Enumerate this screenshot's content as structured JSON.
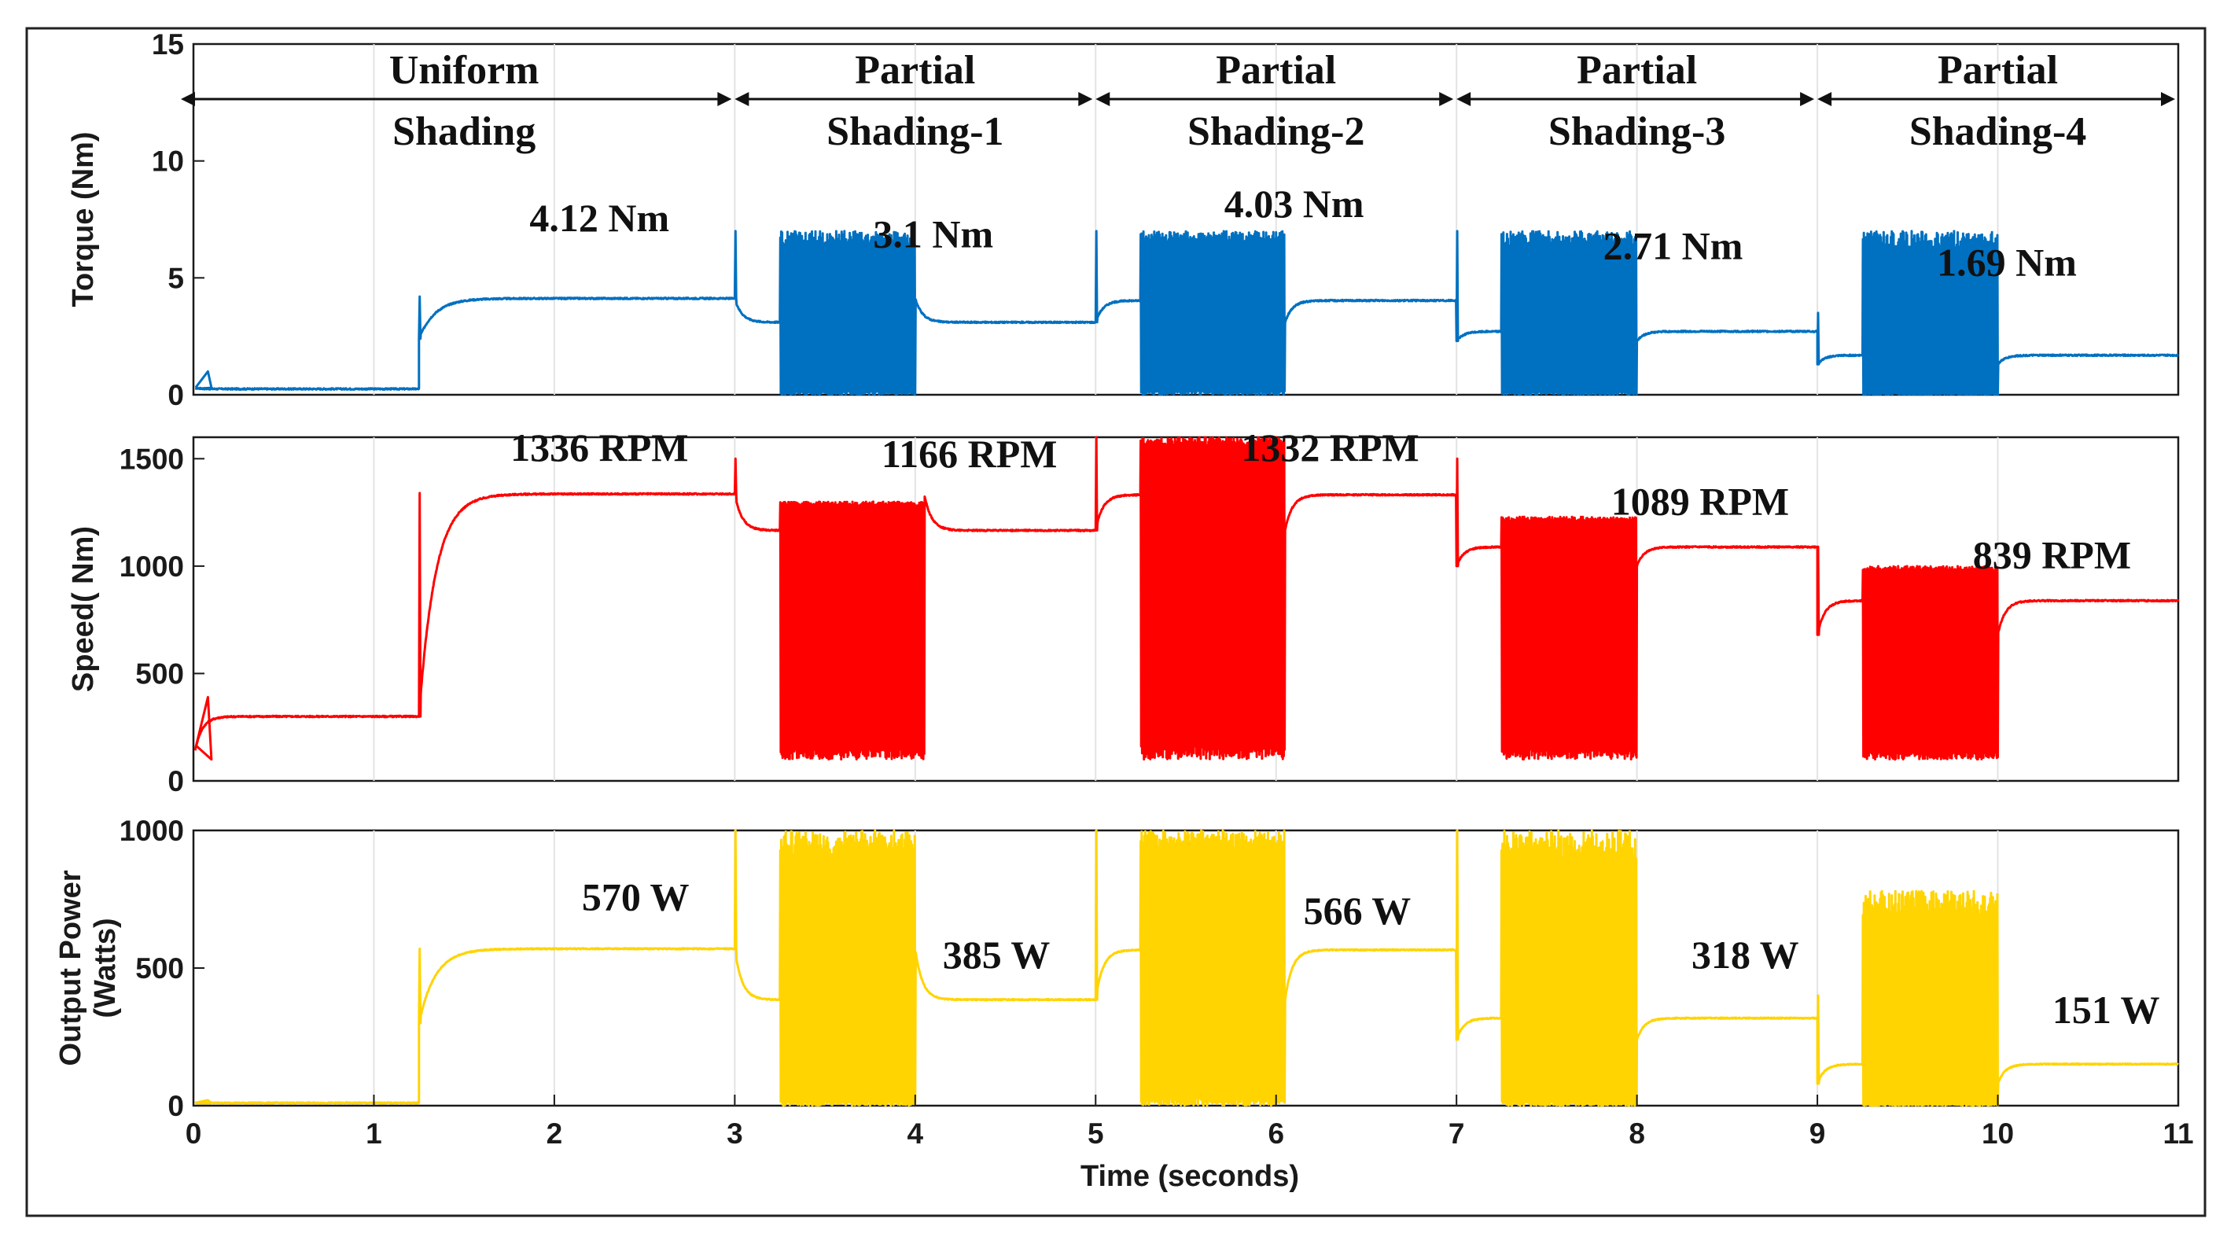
{
  "chart_data": [
    {
      "type": "line",
      "panel": "torque",
      "ylabel": "Torque (Nm)",
      "ylim": [
        0,
        15
      ],
      "yticks": [
        0,
        5,
        10,
        15
      ],
      "xlim": [
        0,
        11
      ],
      "show_x_ticklabels": false,
      "color": "#0070C0",
      "grid": true,
      "regions": [
        {
          "name": "Uniform Shading",
          "lines": [
            "Uniform",
            "Shading"
          ],
          "x0": 0,
          "x1": 3
        },
        {
          "name": "Partial Shading-1",
          "lines": [
            "Partial",
            "Shading-1"
          ],
          "x0": 3,
          "x1": 5
        },
        {
          "name": "Partial Shading-2",
          "lines": [
            "Partial",
            "Shading-2"
          ],
          "x0": 5,
          "x1": 7
        },
        {
          "name": "Partial Shading-3",
          "lines": [
            "Partial",
            "Shading-3"
          ],
          "x0": 7,
          "x1": 9
        },
        {
          "name": "Partial Shading-4",
          "lines": [
            "Partial",
            "Shading-4"
          ],
          "x0": 9,
          "x1": 11
        }
      ],
      "segments": [
        {
          "x0": 0,
          "x1": 1.25,
          "steady": 0.25,
          "start": 0.3,
          "spike": 1.0
        },
        {
          "x0": 1.25,
          "x1": 3,
          "steady": 4.12,
          "start": 2.4,
          "spike": 4.2,
          "osc": [
            0,
            0
          ],
          "tau": 0.09
        },
        {
          "x0": 3,
          "x1": 5,
          "steady": 3.1,
          "start": 4.12,
          "spike": 7.0,
          "osc": [
            0.25,
            1.0
          ],
          "osc_lo": 0,
          "osc_hi": 7,
          "tau": 0.04
        },
        {
          "x0": 5,
          "x1": 7,
          "steady": 4.03,
          "start": 3.1,
          "spike": 7.0,
          "osc": [
            0.25,
            1.05
          ],
          "osc_lo": 0,
          "osc_hi": 7,
          "tau": 0.04
        },
        {
          "x0": 7,
          "x1": 9,
          "steady": 2.71,
          "start": 2.3,
          "spike": 7.0,
          "osc": [
            0.25,
            1.0
          ],
          "osc_lo": 0,
          "osc_hi": 7,
          "tau": 0.04
        },
        {
          "x0": 9,
          "x1": 11,
          "steady": 1.69,
          "start": 1.3,
          "spike": 3.5,
          "osc": [
            0.25,
            1.0
          ],
          "osc_lo": 0,
          "osc_hi": 7,
          "tau": 0.04
        }
      ],
      "annotations": [
        {
          "text": "4.12 Nm",
          "x": 2.25,
          "y": 7.0
        },
        {
          "text": "3.1 Nm",
          "x": 4.1,
          "y": 6.3
        },
        {
          "text": "4.03 Nm",
          "x": 6.1,
          "y": 7.6
        },
        {
          "text": "2.71 Nm",
          "x": 8.2,
          "y": 5.8
        },
        {
          "text": "1.69 Nm",
          "x": 10.05,
          "y": 5.1
        }
      ]
    },
    {
      "type": "line",
      "panel": "speed",
      "ylabel": "Speed( Nm)",
      "ylim": [
        0,
        1600
      ],
      "yticks": [
        0,
        500,
        1000,
        1500
      ],
      "xlim": [
        0,
        11
      ],
      "show_x_ticklabels": false,
      "color": "#FF0000",
      "grid": true,
      "segments": [
        {
          "x0": 0,
          "x1": 1.25,
          "steady": 300,
          "start": 100,
          "spike": 390
        },
        {
          "x0": 1.25,
          "x1": 3,
          "steady": 1336,
          "start": 300,
          "spike": 1340,
          "tau": 0.09
        },
        {
          "x0": 3,
          "x1": 5,
          "steady": 1166,
          "start": 1336,
          "spike": 1500,
          "osc": [
            0.25,
            1.05
          ],
          "osc_lo": 100,
          "osc_hi": 1300,
          "tau": 0.04
        },
        {
          "x0": 5,
          "x1": 7,
          "steady": 1332,
          "start": 1166,
          "spike": 1600,
          "osc": [
            0.25,
            1.05
          ],
          "osc_lo": 100,
          "osc_hi": 1600,
          "tau": 0.04
        },
        {
          "x0": 7,
          "x1": 9,
          "steady": 1089,
          "start": 1000,
          "spike": 1500,
          "osc": [
            0.25,
            1.0
          ],
          "osc_lo": 100,
          "osc_hi": 1230,
          "tau": 0.04
        },
        {
          "x0": 9,
          "x1": 11,
          "steady": 839,
          "start": 680,
          "spike": 1090,
          "osc": [
            0.25,
            1.0
          ],
          "osc_lo": 100,
          "osc_hi": 1000,
          "tau": 0.04
        }
      ],
      "annotations": [
        {
          "text": "1336 RPM",
          "x": 2.25,
          "y": 1490
        },
        {
          "text": "1166 RPM",
          "x": 4.3,
          "y": 1460
        },
        {
          "text": "1332 RPM",
          "x": 6.3,
          "y": 1490
        },
        {
          "text": "1089 RPM",
          "x": 8.35,
          "y": 1240
        },
        {
          "text": "839 RPM",
          "x": 10.3,
          "y": 990
        }
      ]
    },
    {
      "type": "line",
      "panel": "power",
      "ylabel": [
        "Output Power",
        "(Watts)"
      ],
      "ylim": [
        0,
        1000
      ],
      "yticks": [
        0,
        500,
        1000
      ],
      "xlim": [
        0,
        11
      ],
      "xticks": [
        0,
        1,
        2,
        3,
        4,
        5,
        6,
        7,
        8,
        9,
        10,
        11
      ],
      "xlabel": "Time (seconds)",
      "show_x_ticklabels": true,
      "color": "#FFD400",
      "grid": true,
      "segments": [
        {
          "x0": 0,
          "x1": 1.25,
          "steady": 10,
          "start": 10,
          "spike": 20
        },
        {
          "x0": 1.25,
          "x1": 3,
          "steady": 570,
          "start": 300,
          "spike": 570,
          "tau": 0.09
        },
        {
          "x0": 3,
          "x1": 5,
          "steady": 385,
          "start": 570,
          "spike": 1000,
          "osc": [
            0.25,
            1.0
          ],
          "osc_lo": 0,
          "osc_hi": 1000,
          "tau": 0.04
        },
        {
          "x0": 5,
          "x1": 7,
          "steady": 566,
          "start": 385,
          "spike": 1000,
          "osc": [
            0.25,
            1.05
          ],
          "osc_lo": 0,
          "osc_hi": 1000,
          "tau": 0.04
        },
        {
          "x0": 7,
          "x1": 9,
          "steady": 318,
          "start": 240,
          "spike": 1000,
          "osc": [
            0.25,
            1.0
          ],
          "osc_lo": 0,
          "osc_hi": 1000,
          "tau": 0.04
        },
        {
          "x0": 9,
          "x1": 11,
          "steady": 151,
          "start": 80,
          "spike": 400,
          "osc": [
            0.25,
            1.0
          ],
          "osc_lo": 0,
          "osc_hi": 780,
          "tau": 0.04
        }
      ],
      "annotations": [
        {
          "text": "570 W",
          "x": 2.45,
          "y": 710
        },
        {
          "text": "385 W",
          "x": 4.45,
          "y": 500
        },
        {
          "text": "566 W",
          "x": 6.45,
          "y": 660
        },
        {
          "text": "318 W",
          "x": 8.6,
          "y": 500
        },
        {
          "text": "151 W",
          "x": 10.6,
          "y": 300
        }
      ]
    }
  ]
}
